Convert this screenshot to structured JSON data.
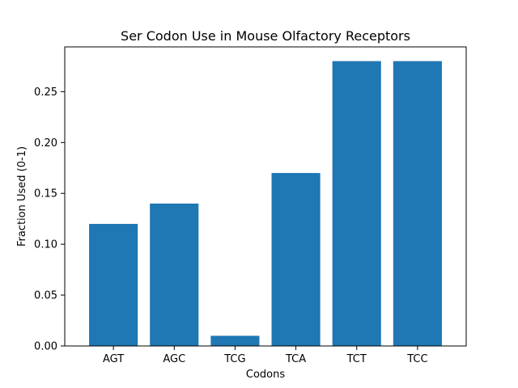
{
  "chart_data": {
    "type": "bar",
    "title": "Ser Codon Use in Mouse Olfactory Receptors",
    "xlabel": "Codons",
    "ylabel": "Fraction Used (0-1)",
    "categories": [
      "AGT",
      "AGC",
      "TCG",
      "TCA",
      "TCT",
      "TCC"
    ],
    "values": [
      0.12,
      0.14,
      0.01,
      0.17,
      0.28,
      0.28
    ],
    "ylim": [
      0,
      0.294
    ],
    "yticks": [
      0.0,
      0.05,
      0.1,
      0.15,
      0.2,
      0.25
    ],
    "ytick_labels": [
      "0.00",
      "0.05",
      "0.10",
      "0.15",
      "0.20",
      "0.25"
    ],
    "bar_color": "#1f77b4",
    "grid": false,
    "legend": "none"
  }
}
